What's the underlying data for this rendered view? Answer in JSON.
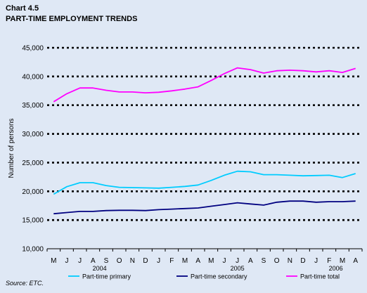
{
  "header": {
    "chart_no": "Chart 4.5",
    "title": "PART-TIME  EMPLOYMENT TRENDS"
  },
  "source": "Source: ETC.",
  "chart_data": {
    "type": "line",
    "title": "PART-TIME  EMPLOYMENT TRENDS",
    "ylabel": "Number of persons",
    "xlabel": "",
    "ylim": [
      10000,
      45000
    ],
    "yticks": [
      "10,000",
      "15,000",
      "20,000",
      "25,000",
      "30,000",
      "35,000",
      "40,000",
      "45,000"
    ],
    "ytick_values": [
      10000,
      15000,
      20000,
      25000,
      30000,
      35000,
      40000,
      45000
    ],
    "categories": [
      "M",
      "J",
      "J",
      "A",
      "S",
      "O",
      "N",
      "D",
      "J",
      "F",
      "M",
      "A",
      "M",
      "J",
      "J",
      "A",
      "S",
      "O",
      "N",
      "D",
      "J",
      "F",
      "M",
      "A"
    ],
    "year_labels": [
      {
        "label": "2004",
        "index": 3.5
      },
      {
        "label": "2005",
        "index": 14
      },
      {
        "label": "2006",
        "index": 21.5
      }
    ],
    "grid": "horizontal-dotted",
    "legend_position": "bottom",
    "series": [
      {
        "name": "Part-time primary",
        "color": "#00ccff",
        "values": [
          19500,
          20800,
          21500,
          21500,
          21000,
          20700,
          20650,
          20600,
          20550,
          20700,
          20850,
          21100,
          21900,
          22800,
          23500,
          23400,
          22900,
          22900,
          22800,
          22700,
          22750,
          22800,
          22400,
          23100
        ]
      },
      {
        "name": "Part-time secondary",
        "color": "#000080",
        "values": [
          16100,
          16300,
          16500,
          16500,
          16650,
          16700,
          16700,
          16650,
          16800,
          16900,
          17000,
          17100,
          17400,
          17700,
          18000,
          17800,
          17600,
          18100,
          18300,
          18300,
          18100,
          18200,
          18200,
          18300
        ]
      },
      {
        "name": "Part-time total",
        "color": "#ff00ff",
        "values": [
          35600,
          37000,
          38000,
          38000,
          37600,
          37300,
          37300,
          37150,
          37250,
          37500,
          37800,
          38200,
          39300,
          40500,
          41500,
          41200,
          40600,
          41000,
          41100,
          41000,
          40800,
          41000,
          40700,
          41400
        ]
      }
    ]
  }
}
